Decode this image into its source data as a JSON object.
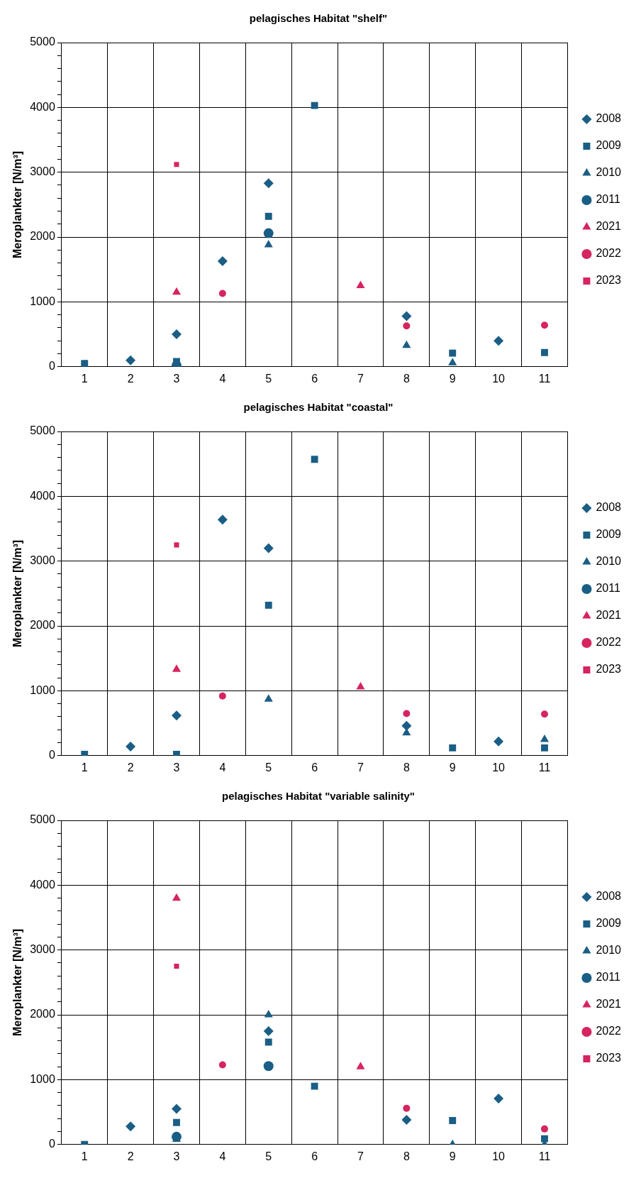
{
  "chart_data": [
    {
      "type": "scatter",
      "title": "pelagisches Habitat \"shelf\"",
      "ylabel": "Meroplankter [N/m³]",
      "categories": [
        "1",
        "2",
        "3",
        "4",
        "5",
        "6",
        "7",
        "8",
        "9",
        "10",
        "11"
      ],
      "ylim": [
        0,
        5000
      ],
      "yticks": [
        0,
        {
          "value": 200,
          "label": null
        },
        {
          "value": 400,
          "label": null
        },
        {
          "value": 600,
          "label": null
        },
        {
          "value": 800,
          "label": null
        },
        1000,
        {
          "value": 1200,
          "label": null
        },
        {
          "value": 1400,
          "label": null
        },
        {
          "value": 1600,
          "label": null
        },
        {
          "value": 1800,
          "label": null
        },
        2000,
        {
          "value": 2200,
          "label": null
        },
        {
          "value": 2400,
          "label": null
        },
        {
          "value": 2600,
          "label": null
        },
        {
          "value": 2800,
          "label": null
        },
        3000,
        {
          "value": 3200,
          "label": null
        },
        {
          "value": 3400,
          "label": null
        },
        {
          "value": 3600,
          "label": null
        },
        {
          "value": 3800,
          "label": null
        },
        4000,
        {
          "value": 4200,
          "label": null
        },
        {
          "value": 4400,
          "label": null
        },
        {
          "value": 4600,
          "label": null
        },
        {
          "value": 4800,
          "label": null
        },
        5000
      ],
      "grid": true,
      "legend": "right",
      "series": [
        {
          "name": "2008",
          "color": "#1a5e85",
          "marker": "diamond",
          "values": [
            null,
            100,
            500,
            1630,
            2830,
            null,
            null,
            780,
            null,
            400,
            null
          ]
        },
        {
          "name": "2009",
          "color": "#1a5e85",
          "marker": "square",
          "values": [
            50,
            null,
            80,
            null,
            2320,
            4030,
            null,
            null,
            210,
            null,
            220
          ]
        },
        {
          "name": "2010",
          "color": "#1a5e85",
          "marker": "triangle",
          "values": [
            null,
            null,
            null,
            null,
            1880,
            null,
            null,
            330,
            60,
            null,
            null
          ]
        },
        {
          "name": "2011",
          "color": "#1a5e85",
          "marker": "circle",
          "values": [
            null,
            null,
            20,
            null,
            2060,
            null,
            null,
            null,
            null,
            null,
            null
          ]
        },
        {
          "name": "2021",
          "color": "#d6245f",
          "marker": "triangle",
          "values": [
            null,
            null,
            1150,
            null,
            null,
            null,
            1250,
            null,
            null,
            null,
            null
          ]
        },
        {
          "name": "2022",
          "color": "#d6245f",
          "marker": "circle",
          "values": [
            null,
            null,
            null,
            1130,
            null,
            null,
            null,
            630,
            null,
            null,
            640
          ]
        },
        {
          "name": "2023",
          "color": "#d6245f",
          "marker": "square",
          "values": [
            null,
            null,
            3120,
            null,
            null,
            null,
            null,
            null,
            null,
            null,
            null
          ]
        }
      ]
    },
    {
      "type": "scatter",
      "title": "pelagisches Habitat \"coastal\"",
      "ylabel": "Meroplankter [N/m³]",
      "categories": [
        "1",
        "2",
        "3",
        "4",
        "5",
        "6",
        "7",
        "8",
        "9",
        "10",
        "11"
      ],
      "ylim": [
        0,
        5000
      ],
      "yticks": [
        0,
        {
          "value": 200,
          "label": null
        },
        {
          "value": 400,
          "label": null
        },
        {
          "value": 600,
          "label": null
        },
        {
          "value": 800,
          "label": null
        },
        1000,
        {
          "value": 1200,
          "label": null
        },
        {
          "value": 1400,
          "label": null
        },
        {
          "value": 1600,
          "label": null
        },
        {
          "value": 1800,
          "label": null
        },
        2000,
        {
          "value": 2200,
          "label": null
        },
        {
          "value": 2400,
          "label": null
        },
        {
          "value": 2600,
          "label": null
        },
        {
          "value": 2800,
          "label": null
        },
        3000,
        {
          "value": 3200,
          "label": null
        },
        {
          "value": 3400,
          "label": null
        },
        {
          "value": 3600,
          "label": null
        },
        {
          "value": 3800,
          "label": null
        },
        4000,
        {
          "value": 4200,
          "label": null
        },
        {
          "value": 4400,
          "label": null
        },
        {
          "value": 4600,
          "label": null
        },
        {
          "value": 4800,
          "label": null
        },
        5000
      ],
      "grid": true,
      "legend": "right",
      "series": [
        {
          "name": "2008",
          "color": "#1a5e85",
          "marker": "diamond",
          "values": [
            null,
            140,
            620,
            3640,
            3200,
            null,
            null,
            460,
            null,
            220,
            null
          ]
        },
        {
          "name": "2009",
          "color": "#1a5e85",
          "marker": "square",
          "values": [
            20,
            null,
            20,
            null,
            2320,
            4570,
            null,
            null,
            120,
            null,
            120
          ]
        },
        {
          "name": "2010",
          "color": "#1a5e85",
          "marker": "triangle",
          "values": [
            null,
            null,
            null,
            null,
            870,
            null,
            null,
            350,
            null,
            null,
            250
          ]
        },
        {
          "name": "2011",
          "color": "#1a5e85",
          "marker": "circle",
          "values": [
            null,
            null,
            null,
            null,
            null,
            null,
            null,
            null,
            null,
            null,
            null
          ]
        },
        {
          "name": "2021",
          "color": "#d6245f",
          "marker": "triangle",
          "values": [
            null,
            null,
            1330,
            null,
            null,
            null,
            1060,
            null,
            null,
            null,
            null
          ]
        },
        {
          "name": "2022",
          "color": "#d6245f",
          "marker": "circle",
          "values": [
            null,
            null,
            null,
            920,
            null,
            null,
            null,
            650,
            null,
            null,
            640
          ]
        },
        {
          "name": "2023",
          "color": "#d6245f",
          "marker": "square",
          "values": [
            null,
            null,
            3250,
            null,
            null,
            null,
            null,
            null,
            null,
            null,
            null
          ]
        }
      ]
    },
    {
      "type": "scatter",
      "title": "pelagisches Habitat \"variable salinity\"",
      "ylabel": "Meroplankter [N/m³]",
      "categories": [
        "1",
        "2",
        "3",
        "4",
        "5",
        "6",
        "7",
        "8",
        "9",
        "10",
        "11"
      ],
      "ylim": [
        0,
        5000
      ],
      "yticks": [
        0,
        {
          "value": 200,
          "label": null
        },
        {
          "value": 400,
          "label": null
        },
        {
          "value": 600,
          "label": null
        },
        {
          "value": 800,
          "label": null
        },
        1000,
        {
          "value": 1200,
          "label": null
        },
        {
          "value": 1400,
          "label": null
        },
        {
          "value": 1600,
          "label": null
        },
        {
          "value": 1800,
          "label": null
        },
        2000,
        {
          "value": 2200,
          "label": null
        },
        {
          "value": 2400,
          "label": null
        },
        {
          "value": 2600,
          "label": null
        },
        {
          "value": 2800,
          "label": null
        },
        3000,
        {
          "value": 3200,
          "label": null
        },
        {
          "value": 3400,
          "label": null
        },
        {
          "value": 3600,
          "label": null
        },
        {
          "value": 3800,
          "label": null
        },
        4000,
        {
          "value": 4200,
          "label": null
        },
        {
          "value": 4400,
          "label": null
        },
        {
          "value": 4600,
          "label": null
        },
        {
          "value": 4800,
          "label": null
        },
        5000
      ],
      "grid": true,
      "legend": "right",
      "series": [
        {
          "name": "2008",
          "color": "#1a5e85",
          "marker": "diamond",
          "values": [
            null,
            280,
            550,
            null,
            1750,
            null,
            null,
            380,
            null,
            710,
            null
          ]
        },
        {
          "name": "2009",
          "color": "#1a5e85",
          "marker": "square",
          "values": [
            0,
            null,
            340,
            null,
            1580,
            900,
            null,
            null,
            370,
            null,
            90
          ]
        },
        {
          "name": "2010",
          "color": "#1a5e85",
          "marker": "triangle",
          "values": [
            null,
            null,
            80,
            null,
            2000,
            null,
            null,
            null,
            0,
            null,
            0
          ]
        },
        {
          "name": "2011",
          "color": "#1a5e85",
          "marker": "circle",
          "values": [
            null,
            null,
            120,
            null,
            1210,
            null,
            null,
            null,
            null,
            null,
            null
          ]
        },
        {
          "name": "2021",
          "color": "#d6245f",
          "marker": "triangle",
          "values": [
            null,
            null,
            3800,
            null,
            null,
            null,
            1200,
            null,
            null,
            null,
            null
          ]
        },
        {
          "name": "2022",
          "color": "#d6245f",
          "marker": "circle",
          "values": [
            null,
            null,
            null,
            1230,
            null,
            null,
            null,
            560,
            null,
            null,
            240
          ]
        },
        {
          "name": "2023",
          "color": "#d6245f",
          "marker": "square",
          "values": [
            null,
            null,
            2750,
            null,
            null,
            null,
            null,
            null,
            null,
            null,
            null
          ]
        }
      ]
    }
  ]
}
